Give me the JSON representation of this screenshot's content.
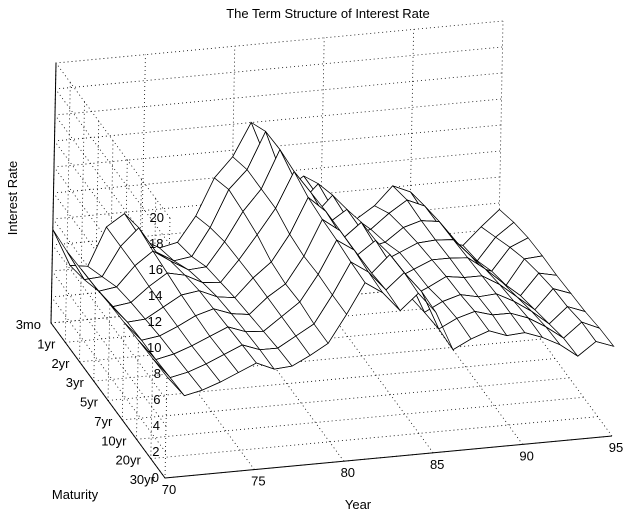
{
  "chart_data": {
    "type": "surface",
    "title": "The Term Structure of Interest Rate",
    "xlabel": "Year",
    "ylabel": "Maturity",
    "zlabel": "Interest Rate",
    "x_ticks": [
      "70",
      "75",
      "80",
      "85",
      "90",
      "95"
    ],
    "y_ticks": [
      "3mo",
      "1yr",
      "2yr",
      "3yr",
      "5yr",
      "7yr",
      "10yr",
      "20yr",
      "30yr"
    ],
    "z_ticks": [
      "0",
      "2",
      "4",
      "6",
      "8",
      "10",
      "12",
      "14",
      "16",
      "18",
      "20"
    ],
    "xlim": [
      70,
      95
    ],
    "zlim": [
      0,
      20
    ],
    "grid": true,
    "series": [
      {
        "name": "3mo",
        "x": [
          70,
          71,
          72,
          73,
          74,
          75,
          76,
          77,
          78,
          79,
          80,
          81,
          82,
          83,
          84,
          85,
          86,
          87,
          88,
          89,
          90,
          91,
          92,
          93,
          94,
          95
        ],
        "values": [
          7.2,
          4.3,
          4.1,
          7.0,
          7.9,
          5.8,
          5.0,
          5.3,
          7.2,
          10.0,
          11.5,
          14.0,
          10.7,
          8.6,
          9.5,
          7.5,
          6.0,
          5.8,
          6.7,
          8.1,
          7.5,
          5.4,
          3.4,
          3.0,
          4.3,
          5.5
        ]
      },
      {
        "name": "1yr",
        "x": [
          70,
          71,
          72,
          73,
          74,
          75,
          76,
          77,
          78,
          79,
          80,
          81,
          82,
          83,
          84,
          85,
          86,
          87,
          88,
          89,
          90,
          91,
          92,
          93,
          94,
          95
        ],
        "values": [
          7.0,
          4.7,
          4.8,
          7.0,
          8.3,
          6.3,
          5.5,
          5.7,
          7.8,
          10.6,
          12.0,
          14.8,
          11.2,
          9.0,
          10.4,
          8.0,
          6.2,
          6.5,
          7.6,
          8.5,
          7.9,
          6.0,
          3.7,
          3.3,
          5.0,
          6.0
        ]
      },
      {
        "name": "2yr",
        "x": [
          70,
          71,
          72,
          73,
          74,
          75,
          76,
          77,
          78,
          79,
          80,
          81,
          82,
          83,
          84,
          85,
          86,
          87,
          88,
          89,
          90,
          91,
          92,
          93,
          94,
          95
        ],
        "values": [
          7.1,
          5.3,
          5.5,
          7.0,
          8.0,
          7.1,
          6.3,
          6.4,
          8.2,
          10.4,
          12.0,
          14.9,
          12.1,
          9.6,
          11.0,
          8.8,
          6.7,
          7.0,
          8.0,
          8.4,
          8.2,
          6.5,
          4.5,
          4.0,
          5.7,
          6.3
        ]
      },
      {
        "name": "3yr",
        "x": [
          70,
          71,
          72,
          73,
          74,
          75,
          76,
          77,
          78,
          79,
          80,
          81,
          82,
          83,
          84,
          85,
          86,
          87,
          88,
          89,
          90,
          91,
          92,
          93,
          94,
          95
        ],
        "values": [
          7.2,
          5.6,
          5.8,
          6.9,
          7.8,
          7.5,
          6.8,
          6.7,
          8.3,
          10.1,
          12.0,
          14.7,
          12.9,
          10.5,
          11.4,
          9.4,
          7.1,
          7.7,
          8.3,
          8.4,
          8.3,
          6.9,
          5.3,
          4.4,
          6.3,
          6.4
        ]
      },
      {
        "name": "5yr",
        "x": [
          70,
          71,
          72,
          73,
          74,
          75,
          76,
          77,
          78,
          79,
          80,
          81,
          82,
          83,
          84,
          85,
          86,
          87,
          88,
          89,
          90,
          91,
          92,
          93,
          94,
          95
        ],
        "values": [
          7.4,
          5.9,
          6.0,
          6.8,
          7.6,
          7.8,
          7.2,
          7.0,
          8.4,
          9.5,
          11.5,
          14.2,
          13.0,
          10.8,
          11.9,
          9.6,
          7.3,
          7.9,
          8.5,
          8.5,
          8.4,
          7.4,
          6.2,
          5.1,
          6.7,
          6.4
        ]
      },
      {
        "name": "7yr",
        "x": [
          70,
          71,
          72,
          73,
          74,
          75,
          76,
          77,
          78,
          79,
          80,
          81,
          82,
          83,
          84,
          85,
          86,
          87,
          88,
          89,
          90,
          91,
          92,
          93,
          94,
          95
        ],
        "values": [
          7.5,
          6.0,
          6.2,
          6.8,
          7.5,
          7.9,
          7.4,
          7.2,
          8.4,
          9.3,
          11.3,
          14.0,
          13.0,
          11.0,
          12.0,
          9.8,
          7.4,
          8.0,
          8.7,
          8.5,
          8.5,
          7.7,
          6.6,
          5.5,
          7.0,
          6.5
        ]
      },
      {
        "name": "10yr",
        "x": [
          70,
          71,
          72,
          73,
          74,
          75,
          76,
          77,
          78,
          79,
          80,
          81,
          82,
          83,
          84,
          85,
          86,
          87,
          88,
          89,
          90,
          91,
          92,
          93,
          94,
          95
        ],
        "values": [
          7.6,
          6.0,
          6.3,
          6.8,
          7.4,
          8.0,
          7.5,
          7.4,
          8.4,
          9.4,
          11.4,
          13.9,
          13.0,
          11.1,
          12.4,
          10.6,
          7.7,
          8.4,
          8.8,
          8.5,
          8.6,
          7.9,
          7.0,
          5.9,
          7.1,
          6.6
        ]
      },
      {
        "name": "20yr",
        "x": [
          70,
          71,
          72,
          73,
          74,
          75,
          76,
          77,
          78,
          79,
          80,
          81,
          82,
          83,
          84,
          85,
          86,
          87,
          88,
          89,
          90,
          91,
          92,
          93,
          94,
          95
        ],
        "values": [
          7.7,
          6.1,
          6.4,
          6.9,
          7.5,
          8.1,
          7.6,
          7.6,
          8.4,
          9.2,
          11.3,
          13.7,
          12.8,
          11.3,
          12.5,
          10.9,
          7.9,
          8.6,
          9.0,
          8.6,
          8.6,
          8.1,
          7.3,
          6.3,
          7.4,
          6.8
        ]
      },
      {
        "name": "30yr",
        "x": [
          70,
          71,
          72,
          73,
          74,
          75,
          76,
          77,
          78,
          79,
          80,
          81,
          82,
          83,
          84,
          85,
          86,
          87,
          88,
          89,
          90,
          91,
          92,
          93,
          94,
          95
        ],
        "values": [
          7.8,
          6.2,
          6.5,
          7.0,
          7.6,
          8.2,
          7.6,
          7.7,
          8.4,
          9.2,
          11.3,
          13.6,
          12.7,
          11.2,
          12.4,
          10.8,
          7.8,
          8.5,
          9.0,
          8.5,
          8.6,
          8.1,
          7.4,
          6.4,
          7.4,
          6.9
        ]
      }
    ]
  }
}
